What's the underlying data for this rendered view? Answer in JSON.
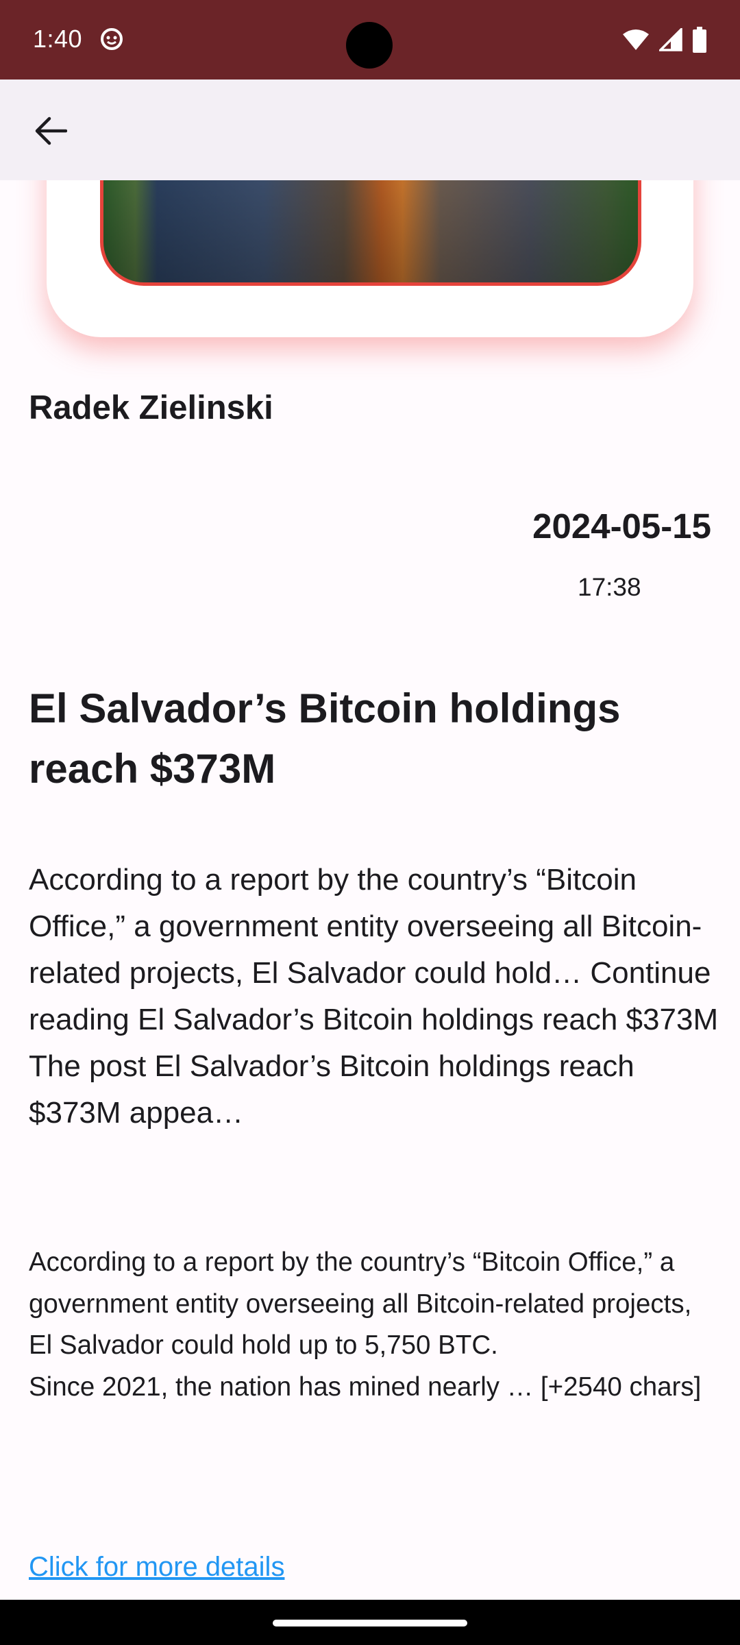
{
  "status_bar": {
    "time": "1:40",
    "notification_icon": "notification-face-icon",
    "icons": [
      "wifi-icon",
      "signal-icon",
      "battery-icon"
    ],
    "background": "#6b2428"
  },
  "app_bar": {
    "back_icon": "arrow-back-icon",
    "background": "#f3eff5"
  },
  "article": {
    "author": "Radek Zielinski",
    "date": "2024-05-15",
    "time": "17:38",
    "title": "El Salvador’s Bitcoin holdings reach $373M",
    "summary": "According to a report by the country’s “Bitcoin Office,” a government entity overseeing all Bitcoin-related projects, El Salvador could hold… Continue reading El Salvador’s Bitcoin holdings reach $373M\nThe post El Salvador’s Bitcoin holdings reach $373M appea…",
    "content": "According to a report by the country’s “Bitcoin Office,” a government entity overseeing all Bitcoin-related projects, El Salvador could hold up to 5,750 BTC.\nSince 2021, the nation has mined nearly … [+2540 chars]",
    "link_label": "Click for more details",
    "link_color": "#2196f3",
    "image_border_color": "#e5433b"
  }
}
